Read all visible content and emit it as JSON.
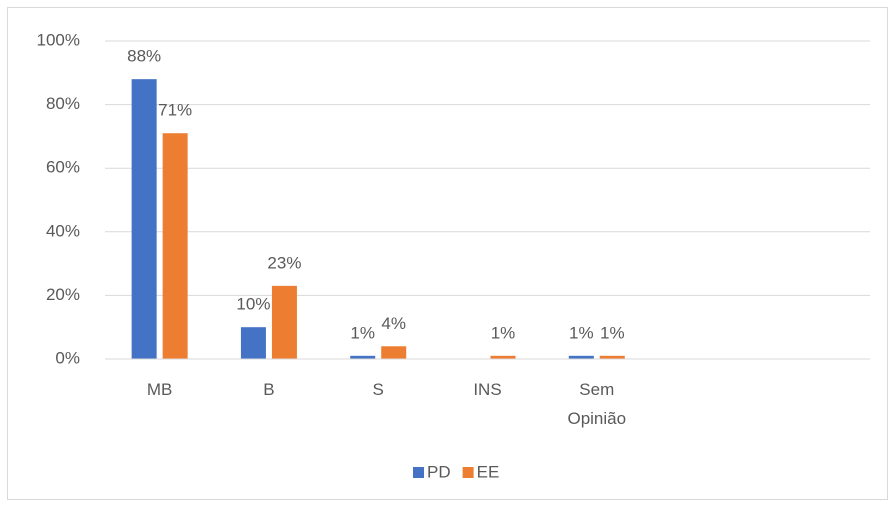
{
  "chart_data": {
    "type": "bar",
    "categories": [
      "MB",
      "B",
      "S",
      "INS",
      "Sem Opinião",
      null,
      null
    ],
    "series": [
      {
        "name": "PD",
        "color": "#4472c4",
        "values": [
          88,
          10,
          1,
          null,
          1,
          null,
          null
        ],
        "value_labels": [
          "88%",
          "10%",
          "1%",
          null,
          "1%",
          null,
          null
        ]
      },
      {
        "name": "EE",
        "color": "#ed7d31",
        "values": [
          71,
          23,
          4,
          1,
          1,
          null,
          null
        ],
        "value_labels": [
          "71%",
          "23%",
          "4%",
          "1%",
          "1%",
          null,
          null
        ]
      }
    ],
    "ylim": [
      0,
      100
    ],
    "yticks": [
      {
        "value": 0,
        "label": "0%"
      },
      {
        "value": 20,
        "label": "20%"
      },
      {
        "value": 40,
        "label": "40%"
      },
      {
        "value": 60,
        "label": "60%"
      },
      {
        "value": 80,
        "label": "80%"
      },
      {
        "value": 100,
        "label": "100%"
      }
    ],
    "grid": true,
    "legend": "bottom"
  }
}
